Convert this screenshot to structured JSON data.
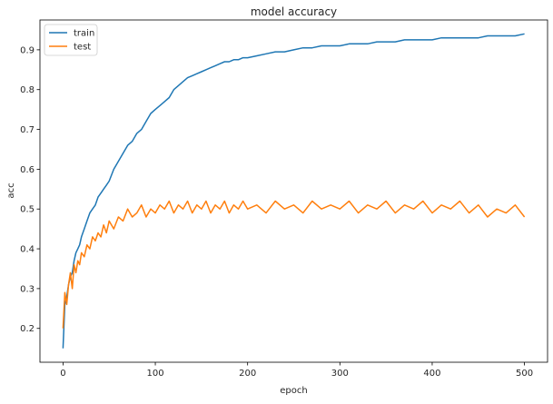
{
  "chart_data": {
    "type": "line",
    "title": "model accuracy",
    "xlabel": "epoch",
    "ylabel": "acc",
    "xlim": [
      -25,
      525
    ],
    "ylim": [
      0.115,
      0.975
    ],
    "xticks": [
      0,
      100,
      200,
      300,
      400,
      500
    ],
    "yticks": [
      0.2,
      0.3,
      0.4,
      0.5,
      0.6,
      0.7,
      0.8,
      0.9
    ],
    "legend_position": "upper-left",
    "grid": false,
    "series": [
      {
        "name": "train",
        "color": "#1f77b4",
        "x": [
          0,
          2,
          4,
          6,
          8,
          10,
          12,
          14,
          16,
          18,
          20,
          23,
          26,
          29,
          32,
          35,
          38,
          41,
          44,
          47,
          50,
          55,
          60,
          65,
          70,
          75,
          80,
          85,
          90,
          95,
          100,
          105,
          110,
          115,
          120,
          125,
          130,
          135,
          140,
          145,
          150,
          155,
          160,
          165,
          170,
          175,
          180,
          185,
          190,
          195,
          200,
          210,
          220,
          230,
          240,
          250,
          260,
          270,
          280,
          290,
          300,
          310,
          320,
          330,
          340,
          350,
          360,
          370,
          380,
          390,
          400,
          410,
          420,
          430,
          440,
          450,
          460,
          470,
          480,
          490,
          500
        ],
        "y": [
          0.15,
          0.26,
          0.28,
          0.31,
          0.33,
          0.34,
          0.37,
          0.39,
          0.4,
          0.41,
          0.43,
          0.45,
          0.47,
          0.49,
          0.5,
          0.51,
          0.53,
          0.54,
          0.55,
          0.56,
          0.57,
          0.6,
          0.62,
          0.64,
          0.66,
          0.67,
          0.69,
          0.7,
          0.72,
          0.74,
          0.75,
          0.76,
          0.77,
          0.78,
          0.8,
          0.81,
          0.82,
          0.83,
          0.835,
          0.84,
          0.845,
          0.85,
          0.855,
          0.86,
          0.865,
          0.87,
          0.87,
          0.875,
          0.875,
          0.88,
          0.88,
          0.885,
          0.89,
          0.895,
          0.895,
          0.9,
          0.905,
          0.905,
          0.91,
          0.91,
          0.91,
          0.915,
          0.915,
          0.915,
          0.92,
          0.92,
          0.92,
          0.925,
          0.925,
          0.925,
          0.925,
          0.93,
          0.93,
          0.93,
          0.93,
          0.93,
          0.935,
          0.935,
          0.935,
          0.935,
          0.94
        ]
      },
      {
        "name": "test",
        "color": "#ff7f0e",
        "x": [
          0,
          2,
          4,
          6,
          8,
          10,
          12,
          14,
          16,
          18,
          20,
          23,
          26,
          29,
          32,
          35,
          38,
          41,
          44,
          47,
          50,
          55,
          60,
          65,
          70,
          75,
          80,
          85,
          90,
          95,
          100,
          105,
          110,
          115,
          120,
          125,
          130,
          135,
          140,
          145,
          150,
          155,
          160,
          165,
          170,
          175,
          180,
          185,
          190,
          195,
          200,
          210,
          220,
          230,
          240,
          250,
          260,
          270,
          280,
          290,
          300,
          310,
          320,
          330,
          340,
          350,
          360,
          370,
          380,
          390,
          400,
          410,
          420,
          430,
          440,
          450,
          460,
          470,
          480,
          490,
          500
        ],
        "y": [
          0.2,
          0.29,
          0.26,
          0.31,
          0.34,
          0.3,
          0.36,
          0.34,
          0.37,
          0.36,
          0.39,
          0.38,
          0.41,
          0.4,
          0.43,
          0.42,
          0.44,
          0.43,
          0.46,
          0.44,
          0.47,
          0.45,
          0.48,
          0.47,
          0.5,
          0.48,
          0.49,
          0.51,
          0.48,
          0.5,
          0.49,
          0.51,
          0.5,
          0.52,
          0.49,
          0.51,
          0.5,
          0.52,
          0.49,
          0.51,
          0.5,
          0.52,
          0.49,
          0.51,
          0.5,
          0.52,
          0.49,
          0.51,
          0.5,
          0.52,
          0.5,
          0.51,
          0.49,
          0.52,
          0.5,
          0.51,
          0.49,
          0.52,
          0.5,
          0.51,
          0.5,
          0.52,
          0.49,
          0.51,
          0.5,
          0.52,
          0.49,
          0.51,
          0.5,
          0.52,
          0.49,
          0.51,
          0.5,
          0.52,
          0.49,
          0.51,
          0.48,
          0.5,
          0.49,
          0.51,
          0.48
        ]
      }
    ]
  }
}
